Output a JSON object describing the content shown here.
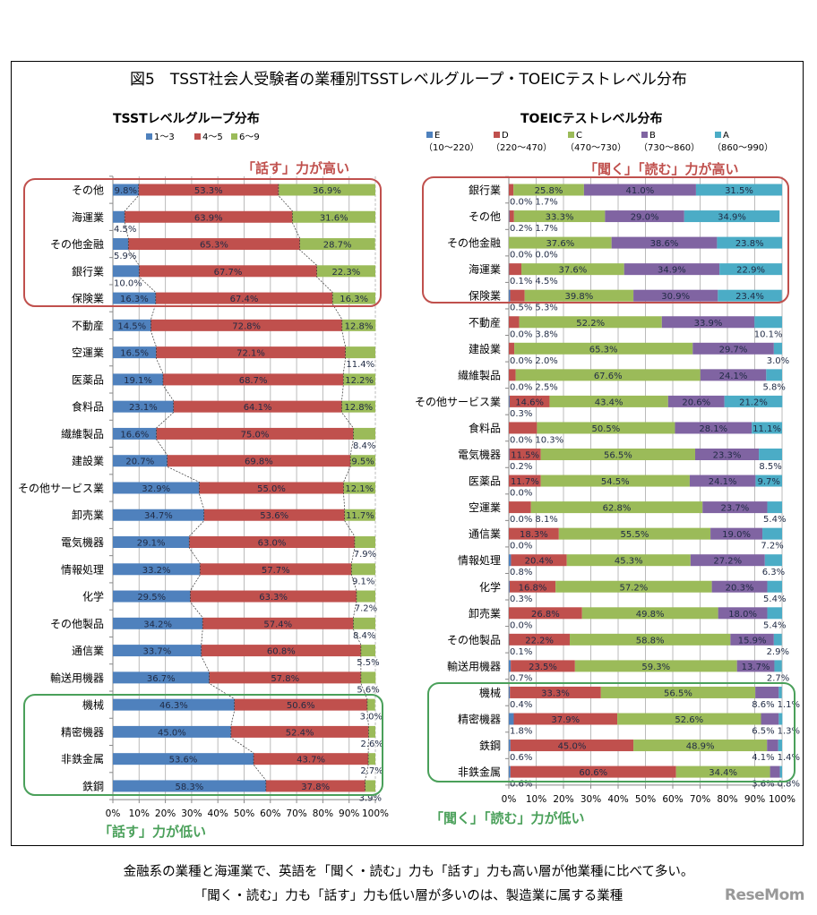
{
  "title": "図5　TSST社会人受験者の業種別TSSTレベルグループ・TOEICテストレベル分布",
  "captions": [
    "金融系の業種と海運業で、英語を「聞く・読む」力も「話す」力も高い層が他業種に比べて多い。",
    "「聞く・読む」力も「話す」力も低い層が多いのは、製造業に属する業種"
  ],
  "logo": "ReseMom",
  "chart_data": [
    {
      "type": "bar",
      "orientation": "horizontal",
      "stacked": "100%",
      "title": "TSSTレベルグループ分布",
      "legend_position": "top",
      "xlim": [
        0,
        100
      ],
      "xticks": [
        "0%",
        "10%",
        "20%",
        "30%",
        "40%",
        "50%",
        "60%",
        "70%",
        "80%",
        "90%",
        "100%"
      ],
      "grid": true,
      "series_lines": true,
      "categories": [
        "その他",
        "海運業",
        "その他金融",
        "銀行業",
        "保険業",
        "不動産",
        "空運業",
        "医薬品",
        "食料品",
        "繊維製品",
        "建設業",
        "その他サービス業",
        "卸売業",
        "電気機器",
        "情報処理",
        "化学",
        "その他製品",
        "通信業",
        "輸送用機器",
        "機械",
        "精密機器",
        "非鉄金属",
        "鉄鋼"
      ],
      "series": [
        {
          "name": "1〜3",
          "color": "#4f81bd",
          "values": [
            9.8,
            4.5,
            5.9,
            10.0,
            16.3,
            14.5,
            16.5,
            19.1,
            23.1,
            16.6,
            20.7,
            32.9,
            34.7,
            29.1,
            33.2,
            29.5,
            34.2,
            33.7,
            36.7,
            46.3,
            45.0,
            53.6,
            58.3
          ]
        },
        {
          "name": "4〜5",
          "color": "#c0504d",
          "values": [
            53.3,
            63.9,
            65.3,
            67.7,
            67.4,
            72.8,
            72.1,
            68.7,
            64.1,
            75.0,
            69.8,
            55.0,
            53.6,
            63.0,
            57.7,
            63.3,
            57.4,
            60.8,
            57.8,
            50.6,
            52.4,
            43.7,
            37.8
          ]
        },
        {
          "name": "6〜9",
          "color": "#9bbb59",
          "values": [
            36.9,
            31.6,
            28.7,
            22.3,
            16.3,
            12.8,
            11.4,
            12.2,
            12.8,
            8.4,
            9.5,
            12.1,
            11.7,
            7.9,
            9.1,
            7.2,
            8.4,
            5.5,
            5.6,
            3.0,
            2.6,
            2.7,
            3.9
          ]
        }
      ],
      "annotations": [
        {
          "text": "「話す」力が高い",
          "color": "#c0504d",
          "rows": [
            "その他",
            "保険業"
          ]
        },
        {
          "text": "「話す」力が低い",
          "color": "#4aa05a",
          "rows": [
            "機械",
            "鉄鋼"
          ]
        }
      ]
    },
    {
      "type": "bar",
      "orientation": "horizontal",
      "stacked": "100%",
      "title": "TOEICテストレベル分布",
      "legend_position": "top",
      "xlim": [
        0,
        100
      ],
      "xticks": [
        "0%",
        "10%",
        "20%",
        "30%",
        "40%",
        "50%",
        "60%",
        "70%",
        "80%",
        "90%",
        "100%"
      ],
      "grid": true,
      "categories": [
        "銀行業",
        "その他",
        "その他金融",
        "海運業",
        "保険業",
        "不動産",
        "建設業",
        "繊維製品",
        "その他サービス業",
        "食料品",
        "電気機器",
        "医薬品",
        "空運業",
        "通信業",
        "情報処理",
        "化学",
        "卸売業",
        "その他製品",
        "輸送用機器",
        "機械",
        "精密機器",
        "鉄鋼",
        "非鉄金属"
      ],
      "series": [
        {
          "name": "E",
          "range": "（10〜220）",
          "color": "#4f81bd",
          "values": [
            0.0,
            0.2,
            0.0,
            0.1,
            0.5,
            0.0,
            0.0,
            0.0,
            0.3,
            0.0,
            0.2,
            0.0,
            0.0,
            0.0,
            0.8,
            0.3,
            0.0,
            0.1,
            0.7,
            0.4,
            1.8,
            0.6,
            0.6
          ]
        },
        {
          "name": "D",
          "range": "（220〜470）",
          "color": "#c0504d",
          "values": [
            1.7,
            1.7,
            0.0,
            4.5,
            5.3,
            3.8,
            2.0,
            2.5,
            14.6,
            10.3,
            11.5,
            11.7,
            8.1,
            18.3,
            20.4,
            16.8,
            26.8,
            22.2,
            23.5,
            33.3,
            37.9,
            45.0,
            60.6
          ]
        },
        {
          "name": "C",
          "range": "（470〜730）",
          "color": "#9bbb59",
          "values": [
            25.8,
            33.3,
            37.6,
            37.6,
            39.8,
            52.2,
            65.3,
            67.6,
            43.4,
            50.5,
            56.5,
            54.5,
            62.8,
            55.5,
            45.3,
            57.2,
            49.8,
            58.8,
            59.3,
            56.5,
            52.6,
            48.9,
            34.4
          ]
        },
        {
          "name": "B",
          "range": "（730〜860）",
          "color": "#8064a2",
          "values": [
            41.0,
            29.0,
            38.6,
            34.9,
            30.9,
            33.9,
            29.7,
            24.1,
            20.6,
            28.1,
            23.3,
            24.1,
            23.7,
            19.0,
            27.2,
            20.3,
            18.0,
            15.9,
            13.7,
            8.6,
            6.5,
            4.1,
            3.6
          ]
        },
        {
          "name": "A",
          "range": "（860〜990）",
          "color": "#4bacc6",
          "values": [
            31.5,
            34.9,
            23.8,
            22.9,
            23.4,
            10.1,
            3.0,
            5.8,
            21.2,
            11.1,
            8.5,
            9.7,
            5.4,
            7.2,
            6.3,
            5.4,
            5.4,
            2.9,
            2.7,
            1.1,
            1.3,
            1.4,
            0.8
          ]
        }
      ],
      "annotations": [
        {
          "text": "「聞く」「読む」力が高い",
          "color": "#c0504d",
          "rows": [
            "銀行業",
            "保険業"
          ]
        },
        {
          "text": "「聞く」「読む」力が低い",
          "color": "#4aa05a",
          "rows": [
            "機械",
            "非鉄金属"
          ]
        }
      ]
    }
  ]
}
